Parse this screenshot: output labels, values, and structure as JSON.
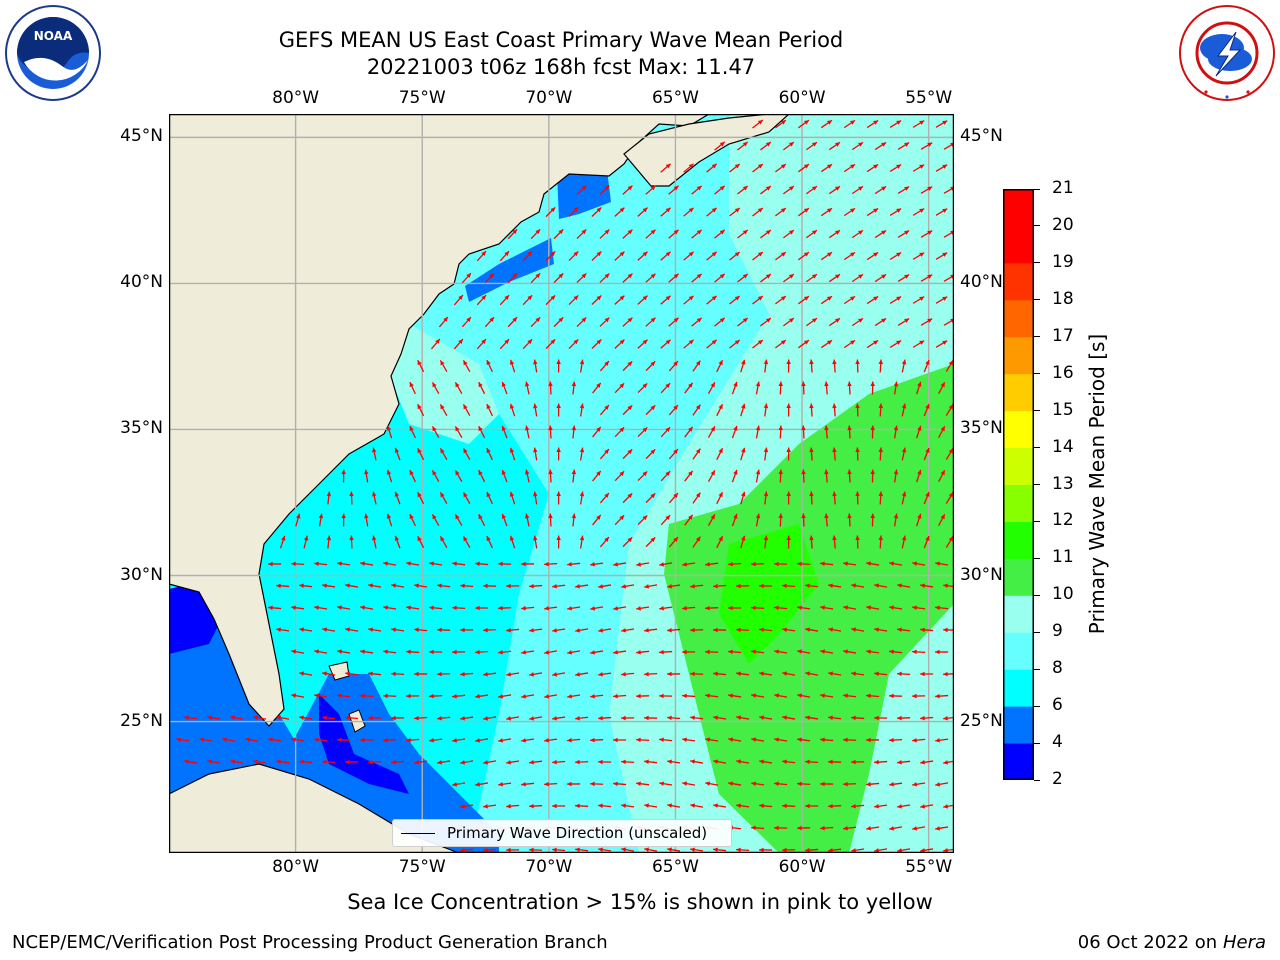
{
  "header": {
    "title": "GEFS MEAN US East Coast Primary Wave Mean Period",
    "subtitle": "20221003 t06z 168h fcst   Max: 11.47"
  },
  "logos": {
    "left": "NOAA",
    "right": "NATIONAL WEATHER SERVICE"
  },
  "map": {
    "lon_range": [
      -85,
      -54
    ],
    "lat_range": [
      20.5,
      45.8
    ],
    "lon_ticks": [
      {
        "value": -80,
        "label": "80°W"
      },
      {
        "value": -75,
        "label": "75°W"
      },
      {
        "value": -70,
        "label": "70°W"
      },
      {
        "value": -65,
        "label": "65°W"
      },
      {
        "value": -60,
        "label": "60°W"
      },
      {
        "value": -55,
        "label": "55°W"
      }
    ],
    "lat_ticks": [
      {
        "value": 45,
        "label": "45°N"
      },
      {
        "value": 40,
        "label": "40°N"
      },
      {
        "value": 35,
        "label": "35°N"
      },
      {
        "value": 30,
        "label": "30°N"
      },
      {
        "value": 25,
        "label": "25°N"
      }
    ],
    "gridlines": true,
    "land_color": "#efedda",
    "arrow_color": "#ff0000",
    "legend_label": "Primary Wave Direction (unscaled)"
  },
  "colorbar": {
    "label": "Primary Wave Mean Period [s]",
    "ticks": [
      "2",
      "4",
      "6",
      "8",
      "9",
      "10",
      "11",
      "12",
      "13",
      "14",
      "15",
      "16",
      "17",
      "18",
      "19",
      "20",
      "21"
    ],
    "colors": [
      "#0000ff",
      "#0073ff",
      "#00ffff",
      "#66ffff",
      "#99ffee",
      "#44ee44",
      "#22ff00",
      "#88ff00",
      "#ccff00",
      "#ffff00",
      "#ffcc00",
      "#ff9900",
      "#ff6600",
      "#ff3300",
      "#ff0000",
      "#ff0000"
    ]
  },
  "notes": {
    "sea_ice": "Sea Ice Concentration > 15% is shown in pink to yellow"
  },
  "footer": {
    "left": "NCEP/EMC/Verification Post Processing Product Generation Branch",
    "right_prefix": "06 Oct 2022 on ",
    "right_machine": "Hera"
  }
}
